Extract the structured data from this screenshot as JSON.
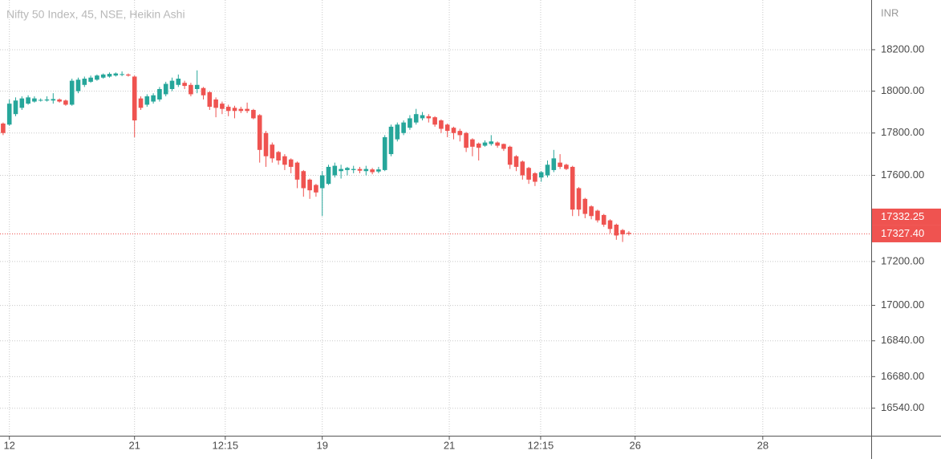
{
  "chart_data": {
    "type": "candlestick",
    "title": "Nifty 50 Index, 45, NSE, Heikin Ashi",
    "y_axis_label": "INR",
    "log_scale": true,
    "grid": true,
    "up_color": "#26a69a",
    "down_color": "#ef5350",
    "xlim": [
      -0.5,
      138.6
    ],
    "ylim": [
      16419,
      18443
    ],
    "xticks": [
      {
        "value": 1,
        "label": "12"
      },
      21,
      {
        "value": 35.5,
        "label": "12:15"
      },
      {
        "value": 51,
        "label": "19"
      },
      {
        "value": 71.3,
        "label": "21"
      },
      {
        "value": 85.9,
        "label": "12:15"
      },
      {
        "value": 101,
        "label": "26"
      },
      {
        "value": 121.4,
        "label": "28"
      }
    ],
    "yticks": [
      {
        "value": 18200,
        "label": "18200.00"
      },
      {
        "value": 18000,
        "label": "18000.00"
      },
      {
        "value": 17800,
        "label": "17800.00"
      },
      {
        "value": 17600,
        "label": "17600.00"
      },
      {
        "value": 17200,
        "label": "17200.00"
      },
      {
        "value": 17000,
        "label": "17000.00"
      },
      {
        "value": 16840,
        "label": "16840.00"
      },
      {
        "value": 16680,
        "label": "16680.00"
      },
      {
        "value": 16540,
        "label": "16540.00"
      }
    ],
    "price_labels": [
      17332.25,
      {
        "value": 17327.4,
        "label": "17327.40"
      }
    ],
    "open": [
      17845,
      17840,
      17890,
      17920,
      17940,
      17950,
      17955,
      17955,
      17955,
      17960,
      17955,
      17935,
      18000,
      18030,
      18045,
      18055,
      18065,
      18070,
      18075,
      18078,
      18080,
      18070,
      17965,
      17935,
      17950,
      17960,
      17985,
      18010,
      18030,
      18040,
      18030,
      18010,
      18015,
      17995,
      17960,
      17940,
      17925,
      17920,
      17915,
      17915,
      17910,
      17885,
      17800,
      17745,
      17710,
      17690,
      17675,
      17660,
      17620,
      17580,
      17555,
      17540,
      17560,
      17600,
      17620,
      17625,
      17625,
      17630,
      17620,
      17628,
      17618,
      17625,
      17700,
      17770,
      17800,
      17825,
      17850,
      17870,
      17880,
      17875,
      17860,
      17840,
      17825,
      17810,
      17800,
      17770,
      17750,
      17740,
      17748,
      17755,
      17748,
      17735,
      17690,
      17665,
      17635,
      17610,
      17590,
      17600,
      17625,
      17660,
      17650,
      17640,
      17540,
      17490,
      17455,
      17435,
      17415,
      17390,
      17370,
      17345,
      17332.25
    ],
    "high": [
      17850,
      17960,
      17970,
      17975,
      17980,
      17975,
      17965,
      17975,
      17990,
      17965,
      17960,
      18060,
      18065,
      18070,
      18075,
      18080,
      18085,
      18090,
      18090,
      18095,
      18085,
      18075,
      17975,
      17985,
      17990,
      18020,
      18045,
      18065,
      18080,
      18050,
      18040,
      18100,
      18020,
      18000,
      17970,
      17950,
      17935,
      17930,
      17925,
      17945,
      17915,
      17890,
      17810,
      17755,
      17715,
      17700,
      17680,
      17665,
      17625,
      17585,
      17560,
      17620,
      17650,
      17660,
      17650,
      17640,
      17645,
      17640,
      17645,
      17635,
      17640,
      17790,
      17840,
      17850,
      17860,
      17885,
      17915,
      17900,
      17890,
      17880,
      17865,
      17845,
      17830,
      17820,
      17805,
      17775,
      17755,
      17765,
      17790,
      17760,
      17750,
      17740,
      17695,
      17670,
      17640,
      17615,
      17620,
      17670,
      17720,
      17700,
      17655,
      17645,
      17545,
      17495,
      17460,
      17440,
      17420,
      17395,
      17375,
      17350,
      17340
    ],
    "low": [
      17790,
      17835,
      17880,
      17910,
      17935,
      17945,
      17950,
      17950,
      17940,
      17945,
      17930,
      17930,
      17990,
      18020,
      18040,
      18050,
      18060,
      18065,
      18070,
      18072,
      18070,
      17780,
      17910,
      17925,
      17940,
      17950,
      17975,
      18000,
      18020,
      18010,
      17975,
      17990,
      17960,
      17910,
      17875,
      17890,
      17880,
      17870,
      17895,
      17895,
      17865,
      17660,
      17640,
      17660,
      17650,
      17625,
      17610,
      17540,
      17500,
      17490,
      17500,
      17410,
      17555,
      17590,
      17585,
      17600,
      17610,
      17610,
      17600,
      17605,
      17610,
      17620,
      17690,
      17760,
      17790,
      17815,
      17840,
      17860,
      17850,
      17830,
      17800,
      17780,
      17770,
      17760,
      17710,
      17690,
      17670,
      17735,
      17740,
      17730,
      17715,
      17630,
      17620,
      17580,
      17560,
      17550,
      17570,
      17590,
      17615,
      17630,
      17625,
      17410,
      17410,
      17400,
      17395,
      17380,
      17360,
      17330,
      17300,
      17290,
      17320
    ],
    "close": [
      17800,
      17940,
      17955,
      17965,
      17970,
      17965,
      17958,
      17960,
      17962,
      17950,
      17935,
      18050,
      18055,
      18060,
      18065,
      18075,
      18080,
      18083,
      18085,
      18082,
      18075,
      17860,
      17920,
      17975,
      17980,
      18010,
      18035,
      18050,
      18060,
      18025,
      17985,
      18030,
      17980,
      17925,
      17920,
      17915,
      17905,
      17905,
      17905,
      17905,
      17870,
      17720,
      17690,
      17680,
      17670,
      17650,
      17640,
      17580,
      17540,
      17530,
      17520,
      17600,
      17640,
      17645,
      17630,
      17635,
      17630,
      17622,
      17630,
      17615,
      17628,
      17780,
      17830,
      17840,
      17850,
      17870,
      17890,
      17885,
      17870,
      17840,
      17820,
      17810,
      17800,
      17790,
      17730,
      17735,
      17730,
      17755,
      17760,
      17740,
      17725,
      17650,
      17640,
      17600,
      17580,
      17570,
      17615,
      17650,
      17680,
      17640,
      17630,
      17440,
      17440,
      17420,
      17410,
      17390,
      17370,
      17350,
      17320,
      17325,
      17327.4
    ]
  }
}
